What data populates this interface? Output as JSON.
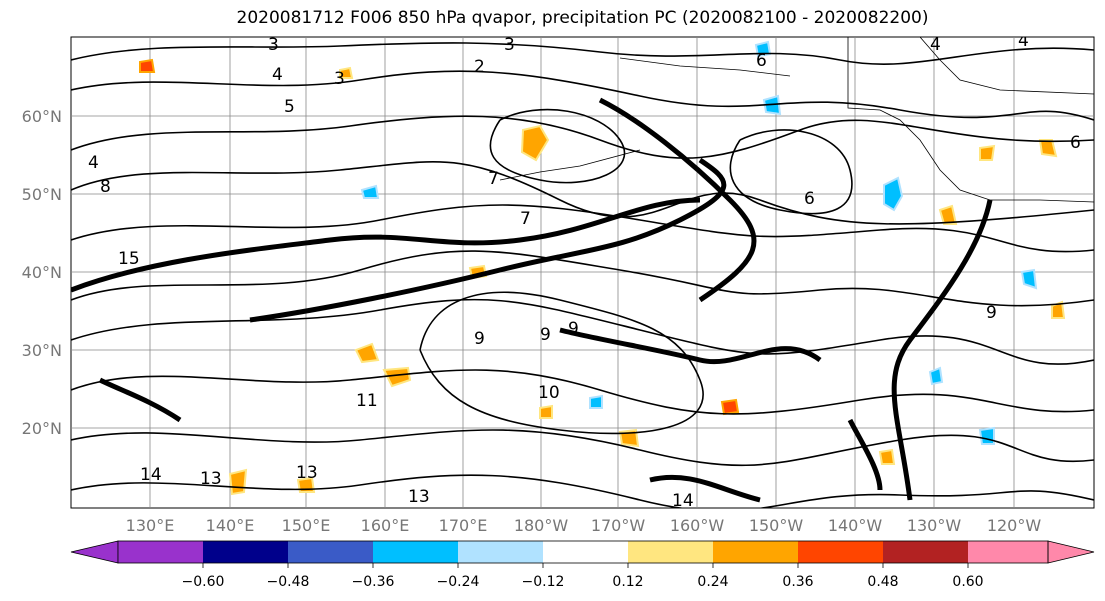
{
  "title": "2020081712 F006 850 hPa qvapor, precipitation PC (2020082100 - 2020082200)",
  "map": {
    "lat_labels": [
      "60°N",
      "50°N",
      "40°N",
      "30°N",
      "20°N"
    ],
    "lon_labels": [
      "130°E",
      "140°E",
      "150°E",
      "160°E",
      "170°E",
      "180°W",
      "170°W",
      "160°W",
      "150°W",
      "140°W",
      "130°W",
      "120°W"
    ],
    "contour_labels": [
      "2",
      "3",
      "3",
      "3",
      "4",
      "4",
      "4",
      "4",
      "5",
      "6",
      "6",
      "6",
      "7",
      "7",
      "8",
      "9",
      "9",
      "9",
      "9",
      "10",
      "11",
      "13",
      "13",
      "13",
      "14",
      "14",
      "15"
    ]
  },
  "colorbar": {
    "ticks": [
      "−0.60",
      "−0.48",
      "−0.36",
      "−0.24",
      "−0.12",
      "0.12",
      "0.24",
      "0.36",
      "0.48",
      "0.60"
    ],
    "colors": [
      "#9932cc",
      "#00008b",
      "#3a5bc7",
      "#00bfff",
      "#b0e2ff",
      "#ffffff",
      "#ffe680",
      "#ffa500",
      "#ff4500",
      "#b22222",
      "#ff88aa"
    ]
  }
}
